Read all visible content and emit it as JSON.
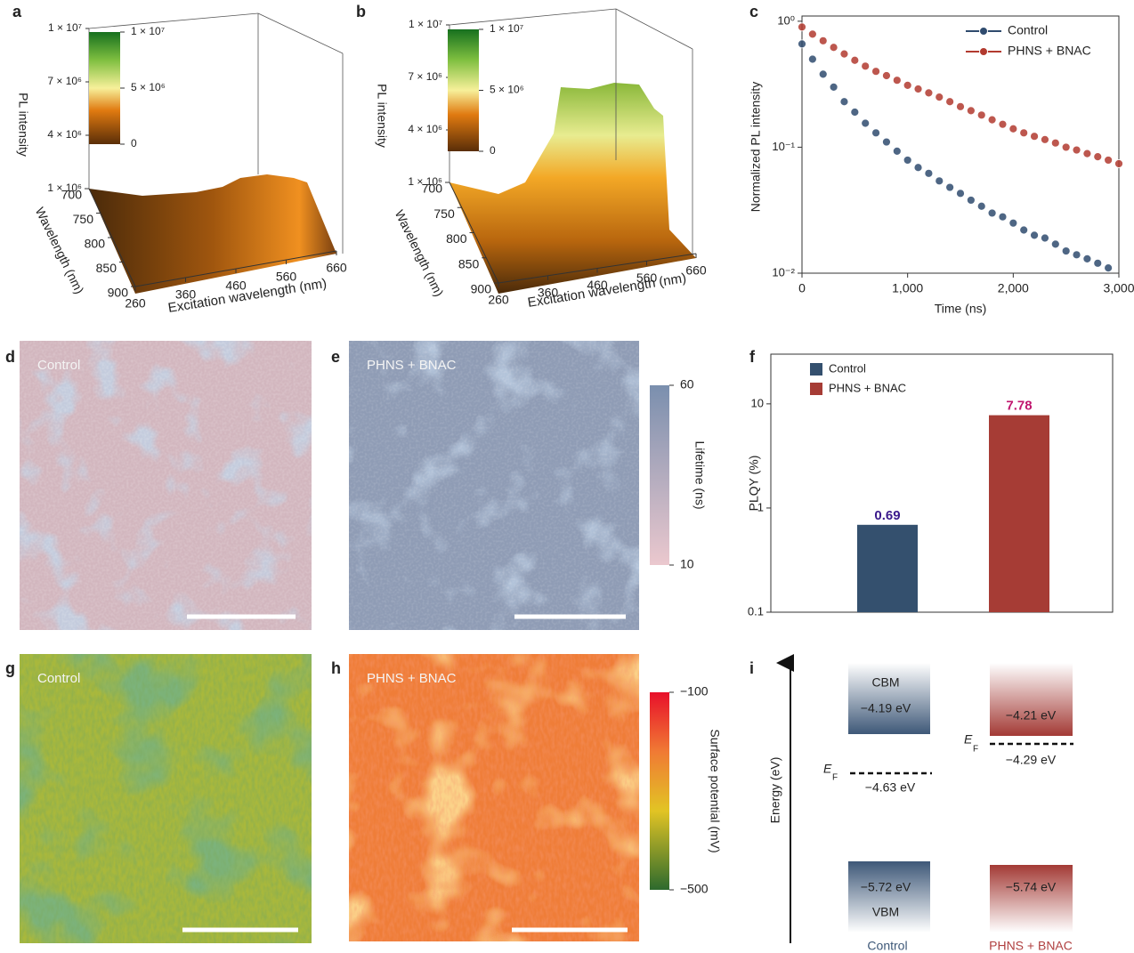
{
  "panel_labels": [
    "a",
    "b",
    "c",
    "d",
    "e",
    "f",
    "g",
    "h",
    "i"
  ],
  "chart_data": [
    {
      "type": "surface3d",
      "zlabel": "PL intensity",
      "ylabel": "Wavelength (nm)",
      "xlabel": "Excitation wavelength (nm)",
      "zlim": [
        1000000,
        10000000
      ],
      "zticks": [
        {
          "value": 1000000,
          "label": "1 × 10⁶"
        },
        {
          "value": 4000000,
          "label": "4 × 10⁶"
        },
        {
          "value": 7000000,
          "label": "7 × 10⁶"
        },
        {
          "value": 10000000,
          "label": "1 × 10⁷"
        }
      ],
      "ylim": [
        700,
        900
      ],
      "yticks": [
        700,
        750,
        800,
        850,
        900
      ],
      "xlim": [
        260,
        660
      ],
      "xticks": [
        260,
        360,
        460,
        560,
        660
      ],
      "colorbar": {
        "lim": [
          0,
          10000000
        ],
        "ticks": [
          0,
          {
            "value": 5000000,
            "label": "5 × 10⁶"
          },
          {
            "value": 10000000,
            "label": "1 × 10⁷"
          }
        ]
      }
    },
    {
      "type": "surface3d",
      "zlabel": "PL intensity",
      "ylabel": "Wavelength (nm)",
      "xlabel": "Excitation wavelength (nm)",
      "zlim": [
        1000000,
        10000000
      ],
      "zticks": [
        {
          "value": 1000000,
          "label": "1 × 10⁶"
        },
        {
          "value": 4000000,
          "label": "4 × 10⁶"
        },
        {
          "value": 7000000,
          "label": "7 × 10⁶"
        },
        {
          "value": 10000000,
          "label": "1 × 10⁷"
        }
      ],
      "ylim": [
        700,
        900
      ],
      "yticks": [
        700,
        750,
        800,
        850,
        900
      ],
      "xlim": [
        260,
        660
      ],
      "xticks": [
        260,
        360,
        460,
        560,
        660
      ],
      "colorbar": {
        "lim": [
          0,
          10000000
        ],
        "ticks": [
          0,
          {
            "value": 5000000,
            "label": "5 × 10⁶"
          },
          {
            "value": 10000000,
            "label": "1 × 10⁷"
          }
        ]
      }
    },
    {
      "type": "line",
      "xlabel": "Time (ns)",
      "ylabel": "Normalized PL intensity",
      "log_y": true,
      "legend": "upper right",
      "marker": "circle",
      "xlim": [
        0,
        3000
      ],
      "xticks": [
        0,
        {
          "value": 1000,
          "label": "1,000"
        },
        {
          "value": 2000,
          "label": "2,000"
        },
        {
          "value": 3000,
          "label": "3,000"
        }
      ],
      "ylim": [
        0.01,
        1.1
      ],
      "yticks": [
        {
          "value": 0.01,
          "label": "10⁻²"
        },
        {
          "value": 0.1,
          "label": "10⁻¹"
        },
        {
          "value": 1,
          "label": "10⁰"
        }
      ],
      "series": [
        {
          "name": "Control",
          "color": "#2f4b6e",
          "x": [
            0,
            100,
            200,
            300,
            400,
            500,
            600,
            700,
            800,
            900,
            1000,
            1100,
            1200,
            1300,
            1400,
            1500,
            1600,
            1700,
            1800,
            1900,
            2000,
            2100,
            2200,
            2300,
            2400,
            2500,
            2600,
            2700,
            2800,
            2900
          ],
          "values": [
            0.66,
            0.5,
            0.38,
            0.3,
            0.23,
            0.19,
            0.155,
            0.13,
            0.11,
            0.093,
            0.079,
            0.069,
            0.062,
            0.054,
            0.048,
            0.043,
            0.038,
            0.034,
            0.03,
            0.028,
            0.025,
            0.022,
            0.02,
            0.019,
            0.017,
            0.015,
            0.014,
            0.013,
            0.012,
            0.011
          ]
        },
        {
          "name": "PHNS + BNAC",
          "color": "#b23a2f",
          "x": [
            0,
            100,
            200,
            300,
            400,
            500,
            600,
            700,
            800,
            900,
            1000,
            1100,
            1200,
            1300,
            1400,
            1500,
            1600,
            1700,
            1800,
            1900,
            2000,
            2100,
            2200,
            2300,
            2400,
            2500,
            2600,
            2700,
            2800,
            2900,
            3000
          ],
          "values": [
            0.9,
            0.79,
            0.7,
            0.62,
            0.55,
            0.49,
            0.44,
            0.4,
            0.37,
            0.34,
            0.31,
            0.29,
            0.27,
            0.25,
            0.23,
            0.21,
            0.195,
            0.18,
            0.165,
            0.152,
            0.14,
            0.13,
            0.122,
            0.115,
            0.108,
            0.1,
            0.095,
            0.089,
            0.084,
            0.079,
            0.074
          ]
        }
      ]
    },
    {
      "type": "map",
      "label": "Control"
    },
    {
      "type": "map",
      "label": "PHNS + BNAC",
      "colorbar": {
        "title": "Lifetime (ns)",
        "lim": [
          10,
          60
        ],
        "ticks": [
          10,
          60
        ]
      }
    },
    {
      "type": "bar",
      "ylabel": "PLQY (%)",
      "log_y": true,
      "ylim": [
        0.1,
        30
      ],
      "yticks": [
        0.1,
        1,
        10
      ],
      "categories": [
        null,
        null
      ],
      "series": [
        {
          "name": "Control",
          "color": "#34506e",
          "label_color": "#3b1a8c",
          "values": [
            0.69,
            null
          ]
        },
        {
          "name": "PHNS + BNAC",
          "color": "#a63c35",
          "label_color": "#c0166e",
          "values": [
            null,
            7.78
          ]
        }
      ]
    },
    {
      "type": "map",
      "label": "Control"
    },
    {
      "type": "map",
      "label": "PHNS + BNAC",
      "colorbar": {
        "title": "Surface potential (mV)",
        "lim": [
          -500,
          -100
        ],
        "ticks": [
          {
            "value": -100,
            "label": "−100"
          },
          {
            "value": -500,
            "label": "−500"
          }
        ]
      }
    }
  ],
  "energy_diagram": {
    "ylabel": "Energy (eV)",
    "ef_symbol": "E",
    "ef_subscript": "F",
    "columns": [
      {
        "name": "Control",
        "cbm_label": "CBM",
        "cbm": "−4.19 eV",
        "ef": "−4.63 eV",
        "vbm": "−5.72 eV",
        "vbm_label": "VBM"
      },
      {
        "name": "PHNS + BNAC",
        "cbm": "−4.21 eV",
        "ef": "−4.29 eV",
        "vbm": "−5.74 eV"
      }
    ]
  }
}
